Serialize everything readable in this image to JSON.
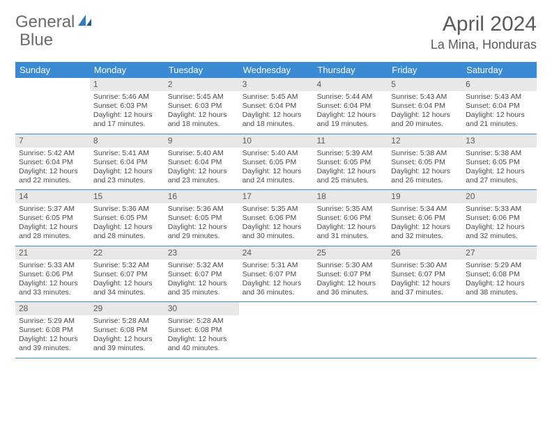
{
  "brand": {
    "word1": "General",
    "word2": "Blue",
    "accent_color": "#2f7bc4"
  },
  "title": "April 2024",
  "location": "La Mina, Honduras",
  "colors": {
    "header_bg": "#3b8bd4",
    "header_fg": "#ffffff",
    "daynum_bg": "#e8e8e8",
    "rule": "#3b8bd4",
    "text": "#4a4a4a"
  },
  "day_names": [
    "Sunday",
    "Monday",
    "Tuesday",
    "Wednesday",
    "Thursday",
    "Friday",
    "Saturday"
  ],
  "weeks": [
    [
      {
        "n": "",
        "sunrise": "",
        "sunset": "",
        "daylight1": "",
        "daylight2": ""
      },
      {
        "n": "1",
        "sunrise": "Sunrise: 5:46 AM",
        "sunset": "Sunset: 6:03 PM",
        "daylight1": "Daylight: 12 hours",
        "daylight2": "and 17 minutes."
      },
      {
        "n": "2",
        "sunrise": "Sunrise: 5:45 AM",
        "sunset": "Sunset: 6:03 PM",
        "daylight1": "Daylight: 12 hours",
        "daylight2": "and 18 minutes."
      },
      {
        "n": "3",
        "sunrise": "Sunrise: 5:45 AM",
        "sunset": "Sunset: 6:04 PM",
        "daylight1": "Daylight: 12 hours",
        "daylight2": "and 18 minutes."
      },
      {
        "n": "4",
        "sunrise": "Sunrise: 5:44 AM",
        "sunset": "Sunset: 6:04 PM",
        "daylight1": "Daylight: 12 hours",
        "daylight2": "and 19 minutes."
      },
      {
        "n": "5",
        "sunrise": "Sunrise: 5:43 AM",
        "sunset": "Sunset: 6:04 PM",
        "daylight1": "Daylight: 12 hours",
        "daylight2": "and 20 minutes."
      },
      {
        "n": "6",
        "sunrise": "Sunrise: 5:43 AM",
        "sunset": "Sunset: 6:04 PM",
        "daylight1": "Daylight: 12 hours",
        "daylight2": "and 21 minutes."
      }
    ],
    [
      {
        "n": "7",
        "sunrise": "Sunrise: 5:42 AM",
        "sunset": "Sunset: 6:04 PM",
        "daylight1": "Daylight: 12 hours",
        "daylight2": "and 22 minutes."
      },
      {
        "n": "8",
        "sunrise": "Sunrise: 5:41 AM",
        "sunset": "Sunset: 6:04 PM",
        "daylight1": "Daylight: 12 hours",
        "daylight2": "and 23 minutes."
      },
      {
        "n": "9",
        "sunrise": "Sunrise: 5:40 AM",
        "sunset": "Sunset: 6:04 PM",
        "daylight1": "Daylight: 12 hours",
        "daylight2": "and 23 minutes."
      },
      {
        "n": "10",
        "sunrise": "Sunrise: 5:40 AM",
        "sunset": "Sunset: 6:05 PM",
        "daylight1": "Daylight: 12 hours",
        "daylight2": "and 24 minutes."
      },
      {
        "n": "11",
        "sunrise": "Sunrise: 5:39 AM",
        "sunset": "Sunset: 6:05 PM",
        "daylight1": "Daylight: 12 hours",
        "daylight2": "and 25 minutes."
      },
      {
        "n": "12",
        "sunrise": "Sunrise: 5:38 AM",
        "sunset": "Sunset: 6:05 PM",
        "daylight1": "Daylight: 12 hours",
        "daylight2": "and 26 minutes."
      },
      {
        "n": "13",
        "sunrise": "Sunrise: 5:38 AM",
        "sunset": "Sunset: 6:05 PM",
        "daylight1": "Daylight: 12 hours",
        "daylight2": "and 27 minutes."
      }
    ],
    [
      {
        "n": "14",
        "sunrise": "Sunrise: 5:37 AM",
        "sunset": "Sunset: 6:05 PM",
        "daylight1": "Daylight: 12 hours",
        "daylight2": "and 28 minutes."
      },
      {
        "n": "15",
        "sunrise": "Sunrise: 5:36 AM",
        "sunset": "Sunset: 6:05 PM",
        "daylight1": "Daylight: 12 hours",
        "daylight2": "and 28 minutes."
      },
      {
        "n": "16",
        "sunrise": "Sunrise: 5:36 AM",
        "sunset": "Sunset: 6:05 PM",
        "daylight1": "Daylight: 12 hours",
        "daylight2": "and 29 minutes."
      },
      {
        "n": "17",
        "sunrise": "Sunrise: 5:35 AM",
        "sunset": "Sunset: 6:06 PM",
        "daylight1": "Daylight: 12 hours",
        "daylight2": "and 30 minutes."
      },
      {
        "n": "18",
        "sunrise": "Sunrise: 5:35 AM",
        "sunset": "Sunset: 6:06 PM",
        "daylight1": "Daylight: 12 hours",
        "daylight2": "and 31 minutes."
      },
      {
        "n": "19",
        "sunrise": "Sunrise: 5:34 AM",
        "sunset": "Sunset: 6:06 PM",
        "daylight1": "Daylight: 12 hours",
        "daylight2": "and 32 minutes."
      },
      {
        "n": "20",
        "sunrise": "Sunrise: 5:33 AM",
        "sunset": "Sunset: 6:06 PM",
        "daylight1": "Daylight: 12 hours",
        "daylight2": "and 32 minutes."
      }
    ],
    [
      {
        "n": "21",
        "sunrise": "Sunrise: 5:33 AM",
        "sunset": "Sunset: 6:06 PM",
        "daylight1": "Daylight: 12 hours",
        "daylight2": "and 33 minutes."
      },
      {
        "n": "22",
        "sunrise": "Sunrise: 5:32 AM",
        "sunset": "Sunset: 6:07 PM",
        "daylight1": "Daylight: 12 hours",
        "daylight2": "and 34 minutes."
      },
      {
        "n": "23",
        "sunrise": "Sunrise: 5:32 AM",
        "sunset": "Sunset: 6:07 PM",
        "daylight1": "Daylight: 12 hours",
        "daylight2": "and 35 minutes."
      },
      {
        "n": "24",
        "sunrise": "Sunrise: 5:31 AM",
        "sunset": "Sunset: 6:07 PM",
        "daylight1": "Daylight: 12 hours",
        "daylight2": "and 36 minutes."
      },
      {
        "n": "25",
        "sunrise": "Sunrise: 5:30 AM",
        "sunset": "Sunset: 6:07 PM",
        "daylight1": "Daylight: 12 hours",
        "daylight2": "and 36 minutes."
      },
      {
        "n": "26",
        "sunrise": "Sunrise: 5:30 AM",
        "sunset": "Sunset: 6:07 PM",
        "daylight1": "Daylight: 12 hours",
        "daylight2": "and 37 minutes."
      },
      {
        "n": "27",
        "sunrise": "Sunrise: 5:29 AM",
        "sunset": "Sunset: 6:08 PM",
        "daylight1": "Daylight: 12 hours",
        "daylight2": "and 38 minutes."
      }
    ],
    [
      {
        "n": "28",
        "sunrise": "Sunrise: 5:29 AM",
        "sunset": "Sunset: 6:08 PM",
        "daylight1": "Daylight: 12 hours",
        "daylight2": "and 39 minutes."
      },
      {
        "n": "29",
        "sunrise": "Sunrise: 5:28 AM",
        "sunset": "Sunset: 6:08 PM",
        "daylight1": "Daylight: 12 hours",
        "daylight2": "and 39 minutes."
      },
      {
        "n": "30",
        "sunrise": "Sunrise: 5:28 AM",
        "sunset": "Sunset: 6:08 PM",
        "daylight1": "Daylight: 12 hours",
        "daylight2": "and 40 minutes."
      },
      {
        "n": "",
        "sunrise": "",
        "sunset": "",
        "daylight1": "",
        "daylight2": ""
      },
      {
        "n": "",
        "sunrise": "",
        "sunset": "",
        "daylight1": "",
        "daylight2": ""
      },
      {
        "n": "",
        "sunrise": "",
        "sunset": "",
        "daylight1": "",
        "daylight2": ""
      },
      {
        "n": "",
        "sunrise": "",
        "sunset": "",
        "daylight1": "",
        "daylight2": ""
      }
    ]
  ]
}
